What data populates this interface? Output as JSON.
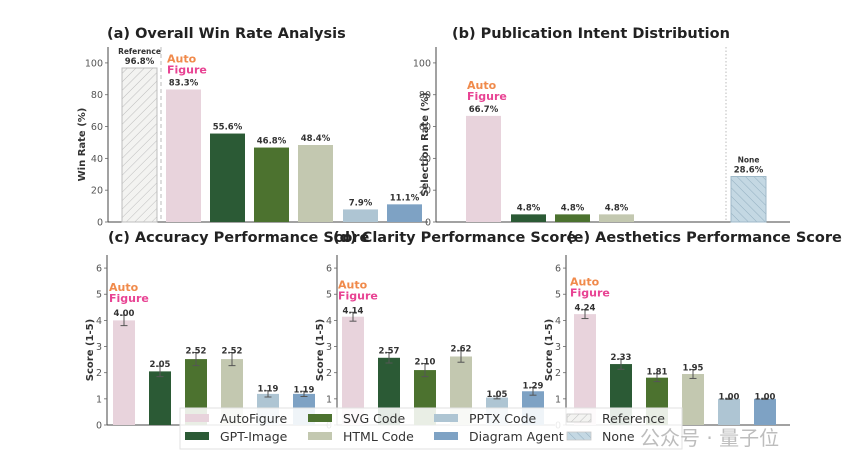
{
  "colors": {
    "AutoFigure": "#e8d3dc",
    "GPT-Image": "#2b5a35",
    "SVG Code": "#4c722f",
    "HTML Code": "#c3c8b0",
    "PPTX Code": "#aec5d3",
    "Diagram Agent": "#7ea2c4",
    "Reference": "#f3f3f1",
    "None": "#c4d8e3",
    "logo_auto": "#f08a4b",
    "logo_figure": "#e84393"
  },
  "logo": {
    "line1": "Auto",
    "line2": "Figure"
  },
  "chart_data": [
    {
      "id": "a",
      "type": "bar",
      "title": "(a) Overall Win Rate Analysis",
      "xlabel": "",
      "ylabel": "Win Rate (%)",
      "ylim": [
        0,
        110
      ],
      "yticks": [
        0,
        20,
        40,
        60,
        80,
        100
      ],
      "categories": [
        "Reference",
        "AutoFigure",
        "GPT-Image",
        "SVG Code",
        "HTML Code",
        "PPTX Code",
        "Diagram Agent"
      ],
      "values": [
        96.8,
        83.3,
        55.6,
        46.8,
        48.4,
        7.9,
        11.1
      ],
      "labels": [
        "96.8%",
        "83.3%",
        "55.6%",
        "46.8%",
        "48.4%",
        "7.9%",
        "11.1%"
      ],
      "annotations": [
        {
          "category": "Reference",
          "text": "Reference"
        },
        {
          "category": "AutoFigure",
          "text": "logo"
        }
      ],
      "separator_after": "Reference",
      "grid": false
    },
    {
      "id": "b",
      "type": "bar",
      "title": "(b) Publication Intent Distribution",
      "xlabel": "",
      "ylabel": "Selection Rate (%)",
      "ylim": [
        0,
        110
      ],
      "yticks": [
        0,
        20,
        40,
        60,
        80,
        100
      ],
      "categories": [
        "AutoFigure",
        "GPT-Image",
        "SVG Code",
        "HTML Code",
        "PPTX Code",
        "Diagram Agent",
        "None"
      ],
      "values": [
        66.7,
        4.8,
        4.8,
        4.8,
        0,
        0,
        28.6
      ],
      "labels": [
        "66.7%",
        "4.8%",
        "4.8%",
        "4.8%",
        "",
        "",
        "28.6%"
      ],
      "annotations": [
        {
          "category": "AutoFigure",
          "text": "logo"
        },
        {
          "category": "None",
          "text": "None"
        }
      ],
      "separator_before": "None",
      "grid": false
    },
    {
      "id": "c",
      "type": "bar",
      "title": "(c) Accuracy Performance Score",
      "xlabel": "",
      "ylabel": "Score (1-5)",
      "ylim": [
        0,
        6.5
      ],
      "yticks": [
        0,
        1,
        2,
        3,
        4,
        5,
        6
      ],
      "categories": [
        "AutoFigure",
        "GPT-Image",
        "SVG Code",
        "HTML Code",
        "PPTX Code",
        "Diagram Agent"
      ],
      "values": [
        4.0,
        2.05,
        2.52,
        2.52,
        1.19,
        1.19
      ],
      "errors": [
        0.2,
        0.2,
        0.25,
        0.25,
        0.12,
        0.1
      ],
      "labels": [
        "4.00",
        "2.05",
        "2.52",
        "2.52",
        "1.19",
        "1.19"
      ],
      "annotations": [
        {
          "category": "AutoFigure",
          "text": "logo"
        }
      ],
      "grid": false
    },
    {
      "id": "d",
      "type": "bar",
      "title": "(d) Clarity Performance Score",
      "xlabel": "",
      "ylabel": "Score (1-5)",
      "ylim": [
        0,
        6.5
      ],
      "yticks": [
        0,
        1,
        2,
        3,
        4,
        5,
        6
      ],
      "categories": [
        "AutoFigure",
        "GPT-Image",
        "SVG Code",
        "HTML Code",
        "PPTX Code",
        "Diagram Agent"
      ],
      "values": [
        4.14,
        2.57,
        2.1,
        2.62,
        1.05,
        1.29
      ],
      "errors": [
        0.17,
        0.2,
        0.25,
        0.22,
        0.05,
        0.15
      ],
      "labels": [
        "4.14",
        "2.57",
        "2.10",
        "2.62",
        "1.05",
        "1.29"
      ],
      "annotations": [
        {
          "category": "AutoFigure",
          "text": "logo"
        }
      ],
      "grid": false
    },
    {
      "id": "e",
      "type": "bar",
      "title": "(e) Aesthetics Performance Score",
      "xlabel": "",
      "ylabel": "Score (1-5)",
      "ylim": [
        0,
        6.5
      ],
      "yticks": [
        0,
        1,
        2,
        3,
        4,
        5,
        6
      ],
      "categories": [
        "AutoFigure",
        "GPT-Image",
        "SVG Code",
        "HTML Code",
        "PPTX Code",
        "Diagram Agent"
      ],
      "values": [
        4.24,
        2.33,
        1.81,
        1.95,
        1.0,
        1.0
      ],
      "errors": [
        0.17,
        0.2,
        0.15,
        0.17,
        0.02,
        0.02
      ],
      "labels": [
        "4.24",
        "2.33",
        "1.81",
        "1.95",
        "1.00",
        "1.00"
      ],
      "annotations": [
        {
          "category": "AutoFigure",
          "text": "logo"
        }
      ],
      "grid": false
    }
  ],
  "legend": {
    "placement": "bottom-center",
    "items": [
      {
        "label": "AutoFigure",
        "key": "AutoFigure",
        "hatch": false
      },
      {
        "label": "GPT-Image",
        "key": "GPT-Image",
        "hatch": false
      },
      {
        "label": "SVG Code",
        "key": "SVG Code",
        "hatch": false
      },
      {
        "label": "HTML Code",
        "key": "HTML Code",
        "hatch": false
      },
      {
        "label": "PPTX Code",
        "key": "PPTX Code",
        "hatch": false
      },
      {
        "label": "Diagram Agent",
        "key": "Diagram Agent",
        "hatch": false
      },
      {
        "label": "Reference",
        "key": "Reference",
        "hatch": true
      },
      {
        "label": "None",
        "key": "None",
        "hatch": true
      }
    ]
  },
  "watermark": "公众号 · 量子位"
}
